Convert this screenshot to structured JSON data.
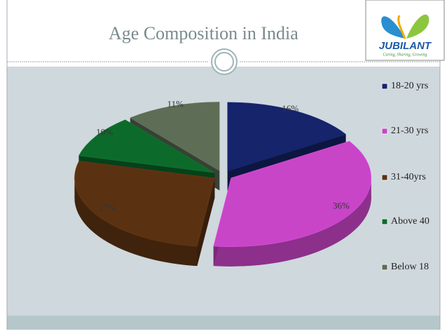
{
  "chart_data": {
    "type": "pie3d",
    "title": "Age Composition in India",
    "categories": [
      "18-20 yrs",
      "21-30 yrs",
      "31-40yrs",
      "Above 40",
      "Below 18"
    ],
    "values": [
      16,
      36,
      27,
      10,
      11
    ],
    "value_labels": [
      "16%",
      "36%",
      "27%",
      "10%",
      "11%"
    ],
    "colors": [
      "#15246b",
      "#c845c8",
      "#5b3211",
      "#0c6b2b",
      "#5d6d56"
    ],
    "legend": "right"
  },
  "logo": {
    "name": "JUBILANT",
    "tagline": "Caring, Sharing, Growing"
  }
}
